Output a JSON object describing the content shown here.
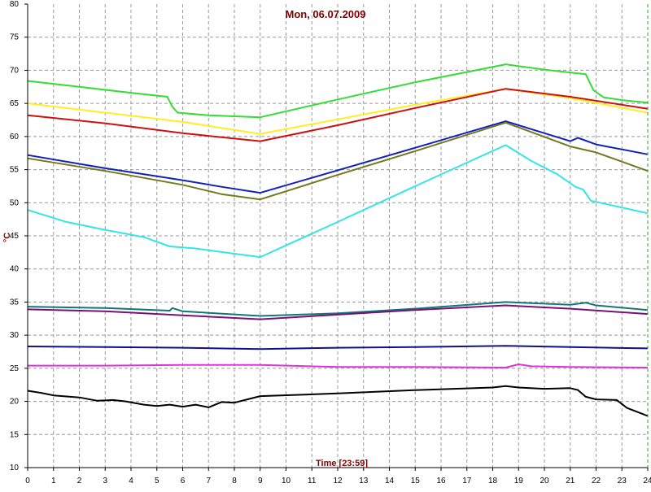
{
  "chart_data": {
    "type": "line",
    "title": "Mon, 06.07.2009",
    "xlabel": "Time [23:59]",
    "ylabel": "°C",
    "xlim": [
      0,
      24
    ],
    "ylim": [
      10,
      80
    ],
    "xticks": [
      "0",
      "1",
      "2",
      "3",
      "4",
      "5",
      "6",
      "7",
      "8",
      "9",
      "10",
      "11",
      "12",
      "13",
      "14",
      "15",
      "16",
      "17",
      "18",
      "19",
      "20",
      "21",
      "22",
      "23",
      "24"
    ],
    "yticks": [
      "10",
      "15",
      "20",
      "25",
      "30",
      "35",
      "40",
      "45",
      "50",
      "55",
      "60",
      "65",
      "70",
      "75",
      "80"
    ],
    "grid": true,
    "series": [
      {
        "color": "#33dd33",
        "points": [
          [
            0,
            68.4
          ],
          [
            2,
            67.5
          ],
          [
            4,
            66.6
          ],
          [
            5.4,
            66.0
          ],
          [
            5.6,
            64.5
          ],
          [
            5.8,
            63.6
          ],
          [
            7,
            63.2
          ],
          [
            9,
            62.9
          ],
          [
            12,
            65.6
          ],
          [
            15,
            68.2
          ],
          [
            18.5,
            70.9
          ],
          [
            20,
            70.1
          ],
          [
            21.6,
            69.4
          ],
          [
            21.9,
            67.0
          ],
          [
            22.3,
            65.9
          ],
          [
            23,
            65.5
          ],
          [
            24,
            65.1
          ]
        ]
      },
      {
        "color": "#ffee22",
        "points": [
          [
            0,
            65.0
          ],
          [
            3,
            63.6
          ],
          [
            6,
            62.2
          ],
          [
            9,
            60.4
          ],
          [
            12,
            62.6
          ],
          [
            15,
            64.8
          ],
          [
            18.5,
            67.2
          ],
          [
            21,
            65.8
          ],
          [
            24,
            63.6
          ]
        ]
      },
      {
        "color": "#cc1111",
        "points": [
          [
            0,
            63.2
          ],
          [
            3,
            62.0
          ],
          [
            6,
            60.5
          ],
          [
            9,
            59.3
          ],
          [
            12,
            61.7
          ],
          [
            15,
            64.3
          ],
          [
            18.5,
            67.2
          ],
          [
            21,
            66.0
          ],
          [
            24,
            64.2
          ]
        ]
      },
      {
        "color": "#1122bb",
        "points": [
          [
            0,
            57.2
          ],
          [
            3,
            55.2
          ],
          [
            6,
            53.4
          ],
          [
            7.5,
            52.4
          ],
          [
            9,
            51.5
          ],
          [
            12,
            54.9
          ],
          [
            15,
            58.3
          ],
          [
            18.5,
            62.3
          ],
          [
            21,
            59.3
          ],
          [
            21.3,
            59.8
          ],
          [
            22,
            58.8
          ],
          [
            24,
            57.3
          ]
        ]
      },
      {
        "color": "#777722",
        "points": [
          [
            0,
            56.7
          ],
          [
            3,
            54.8
          ],
          [
            6,
            52.7
          ],
          [
            7.5,
            51.3
          ],
          [
            9,
            50.5
          ],
          [
            12,
            54.2
          ],
          [
            15,
            57.8
          ],
          [
            18.5,
            62.1
          ],
          [
            21,
            58.5
          ],
          [
            22,
            57.6
          ],
          [
            23,
            56.2
          ],
          [
            24,
            54.8
          ]
        ]
      },
      {
        "color": "#33e5e5",
        "points": [
          [
            0,
            48.9
          ],
          [
            1.5,
            47.1
          ],
          [
            3,
            45.9
          ],
          [
            4.5,
            44.8
          ],
          [
            5.5,
            43.4
          ],
          [
            6.5,
            43.1
          ],
          [
            8,
            42.3
          ],
          [
            9,
            41.8
          ],
          [
            12,
            47.1
          ],
          [
            15,
            52.5
          ],
          [
            18.5,
            58.7
          ],
          [
            19.5,
            56.3
          ],
          [
            20.5,
            54.3
          ],
          [
            21.2,
            52.4
          ],
          [
            21.5,
            52.0
          ],
          [
            21.8,
            50.3
          ],
          [
            22.5,
            49.7
          ],
          [
            24,
            48.4
          ]
        ]
      },
      {
        "color": "#117777",
        "points": [
          [
            0,
            34.3
          ],
          [
            3,
            34.1
          ],
          [
            5.5,
            33.7
          ],
          [
            5.6,
            34.1
          ],
          [
            6,
            33.6
          ],
          [
            9,
            32.9
          ],
          [
            12,
            33.3
          ],
          [
            15,
            34.0
          ],
          [
            18.5,
            35.0
          ],
          [
            21,
            34.6
          ],
          [
            21.6,
            34.9
          ],
          [
            22,
            34.5
          ],
          [
            24,
            33.8
          ]
        ]
      },
      {
        "color": "#771177",
        "points": [
          [
            0,
            33.9
          ],
          [
            3,
            33.6
          ],
          [
            6,
            33.0
          ],
          [
            9,
            32.4
          ],
          [
            12,
            33.1
          ],
          [
            15,
            33.8
          ],
          [
            18.5,
            34.5
          ],
          [
            21,
            34.0
          ],
          [
            24,
            33.2
          ]
        ]
      },
      {
        "color": "#111188",
        "points": [
          [
            0,
            28.3
          ],
          [
            3,
            28.2
          ],
          [
            6,
            28.1
          ],
          [
            9,
            27.9
          ],
          [
            12,
            28.1
          ],
          [
            15,
            28.2
          ],
          [
            18.5,
            28.4
          ],
          [
            21,
            28.2
          ],
          [
            24,
            28.0
          ]
        ]
      },
      {
        "color": "#dd33dd",
        "points": [
          [
            0,
            25.4
          ],
          [
            3,
            25.4
          ],
          [
            6,
            25.5
          ],
          [
            9,
            25.5
          ],
          [
            12,
            25.2
          ],
          [
            15,
            25.2
          ],
          [
            18.5,
            25.1
          ],
          [
            19,
            25.6
          ],
          [
            19.5,
            25.3
          ],
          [
            21,
            25.2
          ],
          [
            24,
            25.1
          ]
        ]
      },
      {
        "color": "#000000",
        "points": [
          [
            0,
            21.6
          ],
          [
            0.5,
            21.3
          ],
          [
            1,
            20.9
          ],
          [
            2,
            20.6
          ],
          [
            2.7,
            20.1
          ],
          [
            3.3,
            20.2
          ],
          [
            3.8,
            20.0
          ],
          [
            4.5,
            19.5
          ],
          [
            5,
            19.3
          ],
          [
            5.5,
            19.5
          ],
          [
            6,
            19.2
          ],
          [
            6.5,
            19.5
          ],
          [
            7,
            19.1
          ],
          [
            7.5,
            19.9
          ],
          [
            8,
            19.8
          ],
          [
            8.5,
            20.3
          ],
          [
            9,
            20.8
          ],
          [
            12,
            21.2
          ],
          [
            15,
            21.7
          ],
          [
            18,
            22.1
          ],
          [
            18.5,
            22.3
          ],
          [
            19,
            22.1
          ],
          [
            20,
            21.9
          ],
          [
            21,
            22.0
          ],
          [
            21.3,
            21.7
          ],
          [
            21.6,
            20.7
          ],
          [
            22,
            20.3
          ],
          [
            22.8,
            20.2
          ],
          [
            23.2,
            19.0
          ],
          [
            23.6,
            18.4
          ],
          [
            24,
            17.8
          ]
        ]
      }
    ]
  }
}
